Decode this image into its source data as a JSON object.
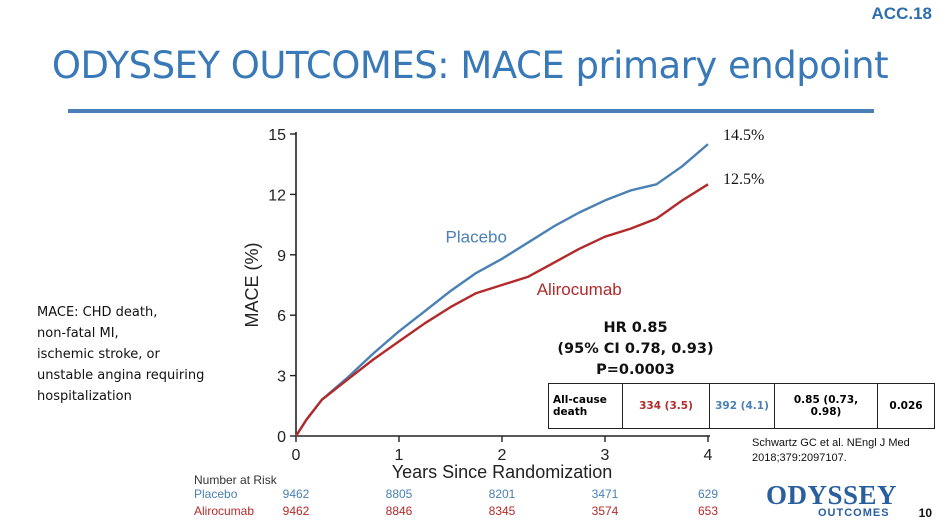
{
  "badge": "ACC.18",
  "title": "ODYSSEY OUTCOMES: MACE primary endpoint",
  "side_note": [
    "MACE: CHD death,",
    "non-fatal MI,",
    "ischemic stroke, or",
    "unstable angina requiring",
    "hospitalization"
  ],
  "end_labels": {
    "placebo": "14.5%",
    "alirocumab": "12.5%"
  },
  "stats": {
    "hr": "HR 0.85",
    "ci": "(95% CI 0.78, 0.93)",
    "p": "P=0.0003"
  },
  "death_table": {
    "label": "All-cause death",
    "alirocumab": "334 (3.5)",
    "placebo": "392 (4.1)",
    "hr": "0.85 (0.73, 0.98)",
    "p": "0.026"
  },
  "reference": "Schwartz GC et al. NEngl J Med 2018;379:2097107.",
  "logo": {
    "top": "ODYSSEY",
    "bottom": "OUTCOMES"
  },
  "page_number": "10",
  "colors": {
    "placebo": "#4a80b4",
    "alirocumab": "#b22a2a",
    "title": "#3a79b8"
  },
  "chart_data": {
    "type": "line",
    "xlabel": "Years Since Randomization",
    "ylabel": "MACE (%)",
    "xlim": [
      0,
      4
    ],
    "ylim": [
      0,
      15
    ],
    "xticks": [
      0,
      1,
      2,
      3,
      4
    ],
    "yticks": [
      0,
      3,
      6,
      9,
      12,
      15
    ],
    "series": [
      {
        "name": "Placebo",
        "x": [
          0,
          0.1,
          0.25,
          0.5,
          0.75,
          1.0,
          1.25,
          1.5,
          1.75,
          2.0,
          2.25,
          2.5,
          2.75,
          3.0,
          3.25,
          3.5,
          3.75,
          4.0
        ],
        "y": [
          0,
          0.8,
          1.8,
          2.9,
          4.1,
          5.2,
          6.2,
          7.2,
          8.1,
          8.8,
          9.6,
          10.4,
          11.1,
          11.7,
          12.2,
          12.5,
          13.4,
          14.5
        ]
      },
      {
        "name": "Alirocumab",
        "x": [
          0,
          0.1,
          0.25,
          0.5,
          0.75,
          1.0,
          1.25,
          1.5,
          1.75,
          2.0,
          2.25,
          2.5,
          2.75,
          3.0,
          3.25,
          3.5,
          3.75,
          4.0
        ],
        "y": [
          0,
          0.8,
          1.8,
          2.8,
          3.8,
          4.7,
          5.6,
          6.4,
          7.1,
          7.5,
          7.9,
          8.6,
          9.3,
          9.9,
          10.3,
          10.8,
          11.7,
          12.5
        ]
      }
    ],
    "risk_table": {
      "title": "Number at Risk",
      "rows": [
        {
          "name": "Placebo",
          "values": [
            9462,
            8805,
            8201,
            3471,
            629
          ]
        },
        {
          "name": "Alirocumab",
          "values": [
            9462,
            8846,
            8345,
            3574,
            653
          ]
        }
      ]
    }
  }
}
